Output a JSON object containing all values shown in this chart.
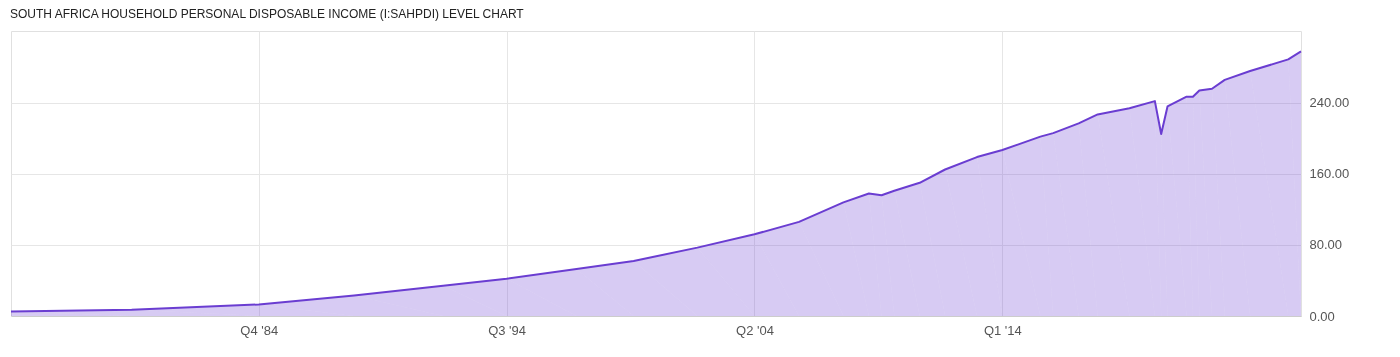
{
  "chart_data": {
    "type": "area",
    "title": "SOUTH AFRICA HOUSEHOLD PERSONAL DISPOSABLE INCOME (I:SAHPDI) LEVEL CHART",
    "series": [
      {
        "color": "#6a3dd1",
        "x": [
          "1975-01",
          "1979-10",
          "1984-10",
          "1988-07",
          "1992-01",
          "1994-07",
          "1997-04",
          "1999-07",
          "2002-01",
          "2004-04",
          "2006-01",
          "2007-10",
          "2008-10",
          "2009-04",
          "2009-10",
          "2010-10",
          "2011-10",
          "2013-01",
          "2014-01",
          "2015-07",
          "2016-01",
          "2017-01",
          "2017-10",
          "2019-01",
          "2020-01",
          "2020-04",
          "2020-07",
          "2021-04",
          "2021-07",
          "2021-10",
          "2022-04",
          "2022-10",
          "2023-10",
          "2025-04",
          "2025-10"
        ],
        "values": [
          5,
          7,
          13,
          23,
          34,
          42,
          53,
          62,
          77,
          92,
          106,
          128,
          138,
          136,
          141,
          150,
          165,
          179,
          187,
          202,
          206,
          217,
          227,
          234,
          242,
          205,
          236,
          247,
          247,
          254,
          256,
          266,
          276,
          289,
          298
        ]
      }
    ],
    "xlim": [
      "1975-01",
      "2025-10"
    ],
    "xticks": [
      {
        "value": "1984-10",
        "label": "Q4 '84"
      },
      {
        "value": "1994-07",
        "label": "Q3 '94"
      },
      {
        "value": "2004-04",
        "label": "Q2 '04"
      },
      {
        "value": "2014-01",
        "label": "Q1 '14"
      }
    ],
    "ylim": [
      0,
      321
    ],
    "yticks": [
      {
        "value": 0,
        "label": "0.00"
      },
      {
        "value": 80,
        "label": "80.00"
      },
      {
        "value": 160,
        "label": "160.00"
      },
      {
        "value": 240,
        "label": "240.00"
      }
    ],
    "grid": true,
    "marker": "none",
    "line_style": "solid"
  }
}
